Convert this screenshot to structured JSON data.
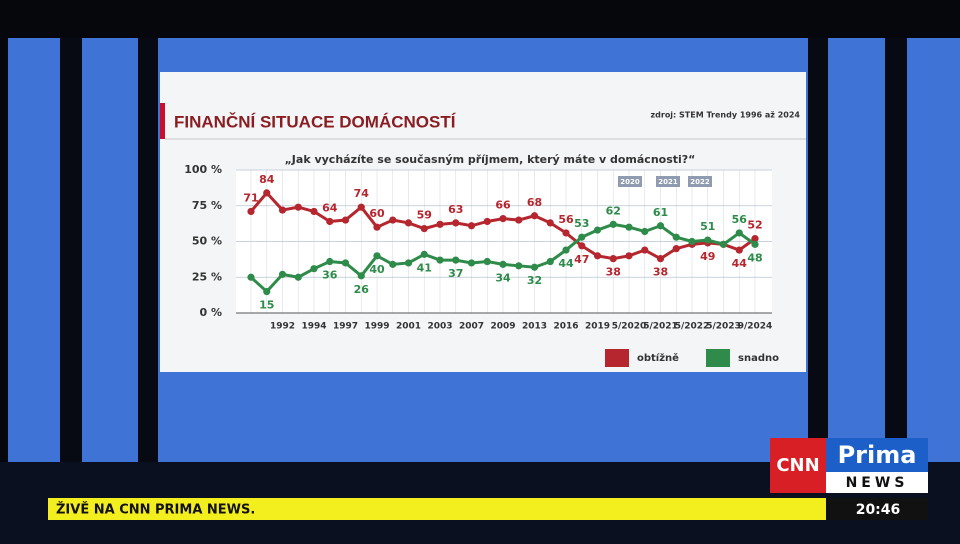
{
  "chart_data": {
    "type": "line",
    "title": "FINANČNÍ SITUACE DOMÁCNOSTÍ",
    "source": "zdroj: STEM Trendy 1996 až 2024",
    "subtitle": "„Jak vycházíte se současným příjmem, který máte v domácnosti?“",
    "annotations": [
      "2020",
      "2021",
      "2022"
    ],
    "categories": [
      null,
      null,
      "1992",
      null,
      "1994",
      null,
      "1997",
      null,
      "1999",
      null,
      "2001",
      null,
      "2003",
      null,
      "2007",
      null,
      "2009",
      null,
      "2013",
      null,
      "2016",
      null,
      "2019",
      null,
      "5/2020",
      null,
      "5/2021",
      null,
      "5/2022",
      null,
      "5/2023",
      null,
      "9/2024"
    ],
    "series": [
      {
        "name": "obtížně",
        "color": "#b5262e",
        "values": [
          71,
          84,
          72,
          74,
          71,
          64,
          65,
          74,
          60,
          65,
          63,
          59,
          62,
          63,
          61,
          64,
          66,
          65,
          68,
          63,
          56,
          47,
          40,
          38,
          40,
          44,
          38,
          45,
          48,
          49,
          48,
          44,
          52
        ],
        "value_labels": [
          "71",
          "84",
          null,
          null,
          null,
          "64",
          null,
          "74",
          "60",
          null,
          null,
          "59",
          null,
          "63",
          null,
          null,
          "66",
          null,
          "68",
          null,
          "56",
          "47",
          null,
          "38",
          null,
          null,
          "38",
          null,
          null,
          "49",
          null,
          "44",
          "52"
        ]
      },
      {
        "name": "snadno",
        "color": "#2e8b4a",
        "values": [
          25,
          15,
          27,
          25,
          31,
          36,
          35,
          26,
          40,
          34,
          35,
          41,
          37,
          37,
          35,
          36,
          34,
          33,
          32,
          36,
          44,
          53,
          58,
          62,
          60,
          57,
          61,
          53,
          50,
          51,
          48,
          56,
          48
        ],
        "value_labels": [
          null,
          "15",
          null,
          null,
          null,
          "36",
          null,
          "26",
          "40",
          null,
          null,
          "41",
          null,
          "37",
          null,
          null,
          "34",
          null,
          "32",
          null,
          "44",
          "53",
          null,
          "62",
          null,
          null,
          "61",
          null,
          null,
          "51",
          null,
          "56",
          "48"
        ]
      }
    ],
    "ylim": [
      0,
      100
    ],
    "yticks": [
      {
        "value": 0,
        "label": "0 %"
      },
      {
        "value": 25,
        "label": "25 %"
      },
      {
        "value": 50,
        "label": "50 %"
      },
      {
        "value": 75,
        "label": "75 %"
      },
      {
        "value": 100,
        "label": "100 %"
      }
    ],
    "grid": true
  },
  "broadcast": {
    "ticker": "ŽIVĚ NA CNN PRIMA NEWS.",
    "time": "20:46",
    "logo_cnn": "CNN",
    "logo_prima": "Prima",
    "logo_news": "NEWS"
  }
}
